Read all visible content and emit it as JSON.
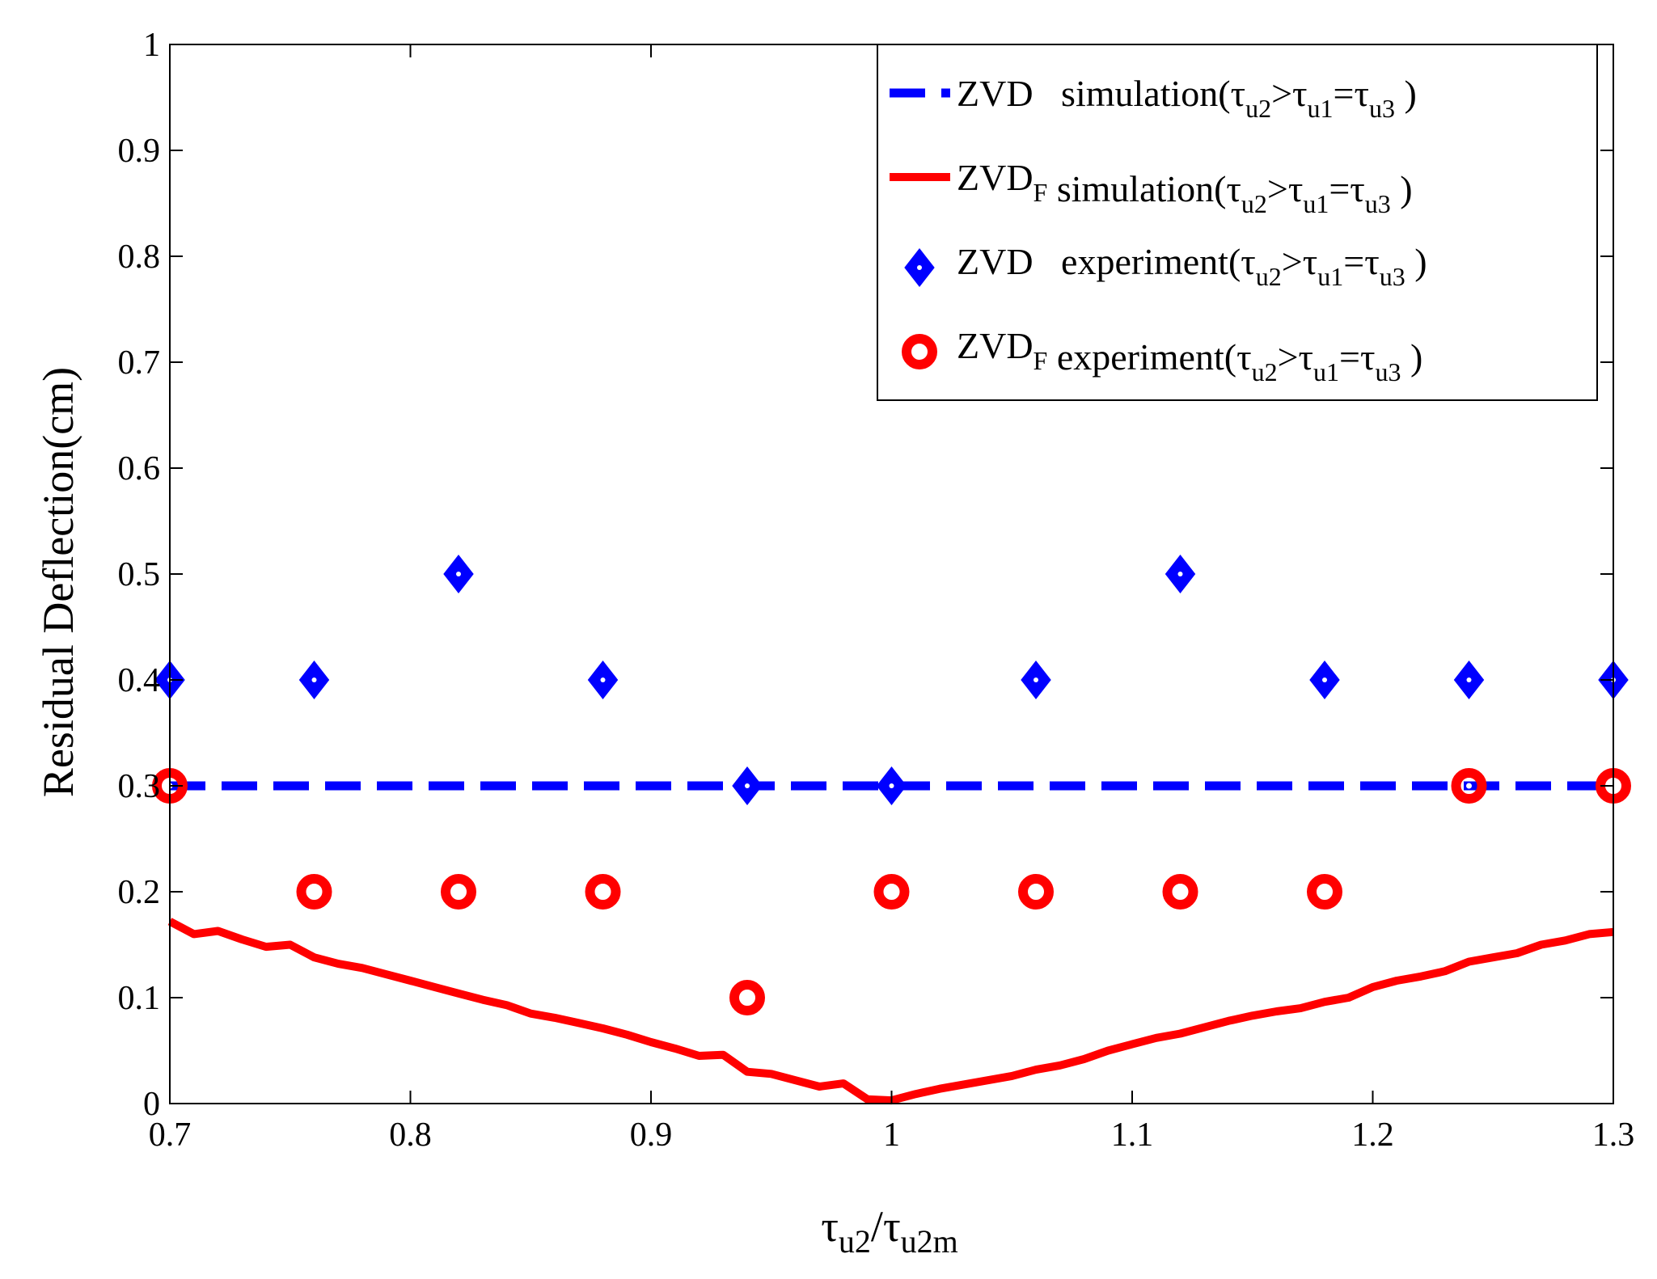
{
  "chart_data": {
    "type": "line",
    "title": "",
    "xlabel": {
      "main": "τ",
      "sub": "u2",
      "sep": "/",
      "main2": "τ",
      "sub2": "u2m"
    },
    "ylabel": "Residual Deflection(cm)",
    "xlim": [
      0.7,
      1.3
    ],
    "ylim": [
      0,
      1
    ],
    "xticks": [
      0.7,
      0.8,
      0.9,
      1.0,
      1.1,
      1.2,
      1.3
    ],
    "xtick_labels": [
      "0.7",
      "0.8",
      "0.9",
      "1",
      "1.1",
      "1.2",
      "1.3"
    ],
    "yticks": [
      0,
      0.1,
      0.2,
      0.3,
      0.4,
      0.5,
      0.6,
      0.7,
      0.8,
      0.9,
      1
    ],
    "ytick_labels": [
      "0",
      "0.1",
      "0.2",
      "0.3",
      "0.4",
      "0.5",
      "0.6",
      "0.7",
      "0.8",
      "0.9",
      "1"
    ],
    "grid": false,
    "legend_position": "top-right",
    "series": [
      {
        "name": "ZVD simulation",
        "kind": "line",
        "style": "dashed",
        "color": "#0000ff",
        "legend": {
          "name": "ZVD",
          "gap": true,
          "label": "simulation",
          "cond": [
            "τ",
            "u2",
            ">",
            "τ",
            "u1",
            "=",
            "τ",
            "u3"
          ]
        },
        "x": [
          0.7,
          1.3
        ],
        "y": [
          0.3,
          0.3
        ]
      },
      {
        "name": "ZVD_F simulation",
        "kind": "line",
        "style": "solid",
        "color": "#ff0000",
        "legend": {
          "name": "ZVD",
          "name_sub": "F",
          "label": "simulation",
          "cond": [
            "τ",
            "u2",
            ">",
            "τ",
            "u1",
            "=",
            "τ",
            "u3"
          ]
        },
        "x": [
          0.7,
          0.71,
          0.72,
          0.73,
          0.74,
          0.75,
          0.76,
          0.77,
          0.78,
          0.79,
          0.8,
          0.81,
          0.82,
          0.83,
          0.84,
          0.85,
          0.86,
          0.87,
          0.88,
          0.89,
          0.9,
          0.91,
          0.92,
          0.93,
          0.94,
          0.95,
          0.96,
          0.97,
          0.98,
          0.99,
          1.0,
          1.01,
          1.02,
          1.03,
          1.04,
          1.05,
          1.06,
          1.07,
          1.08,
          1.09,
          1.1,
          1.11,
          1.12,
          1.13,
          1.14,
          1.15,
          1.16,
          1.17,
          1.18,
          1.19,
          1.2,
          1.21,
          1.22,
          1.23,
          1.24,
          1.25,
          1.26,
          1.27,
          1.28,
          1.29,
          1.3
        ],
        "y": [
          0.172,
          0.16,
          0.163,
          0.155,
          0.148,
          0.15,
          0.138,
          0.132,
          0.128,
          0.122,
          0.116,
          0.11,
          0.104,
          0.098,
          0.093,
          0.085,
          0.081,
          0.076,
          0.071,
          0.065,
          0.058,
          0.052,
          0.045,
          0.046,
          0.03,
          0.028,
          0.022,
          0.016,
          0.019,
          0.004,
          0.003,
          0.009,
          0.014,
          0.018,
          0.022,
          0.026,
          0.032,
          0.036,
          0.042,
          0.05,
          0.056,
          0.062,
          0.066,
          0.072,
          0.078,
          0.083,
          0.087,
          0.09,
          0.096,
          0.1,
          0.11,
          0.116,
          0.12,
          0.125,
          0.134,
          0.138,
          0.142,
          0.15,
          0.154,
          0.16,
          0.162
        ]
      },
      {
        "name": "ZVD experiment",
        "kind": "scatter",
        "marker": "diamond",
        "color": "#0000ff",
        "legend": {
          "name": "ZVD",
          "gap": true,
          "label": "experiment",
          "cond": [
            "τ",
            "u2",
            ">",
            "τ",
            "u1",
            "=",
            "τ",
            "u3"
          ]
        },
        "x": [
          0.7,
          0.76,
          0.82,
          0.88,
          0.94,
          1.0,
          1.06,
          1.12,
          1.18,
          1.24,
          1.3
        ],
        "y": [
          0.4,
          0.4,
          0.5,
          0.4,
          0.3,
          0.3,
          0.4,
          0.5,
          0.4,
          0.4,
          0.4
        ]
      },
      {
        "name": "ZVD_F experiment",
        "kind": "scatter",
        "marker": "circle",
        "color": "#ff0000",
        "legend": {
          "name": "ZVD",
          "name_sub": "F",
          "label": "experiment",
          "cond": [
            "τ",
            "u2",
            ">",
            "τ",
            "u1",
            "=",
            "τ",
            "u3"
          ]
        },
        "x": [
          0.7,
          0.76,
          0.82,
          0.88,
          0.94,
          1.0,
          1.06,
          1.12,
          1.18,
          1.24,
          1.3
        ],
        "y": [
          0.3,
          0.2,
          0.2,
          0.2,
          0.1,
          0.2,
          0.2,
          0.2,
          0.2,
          0.3,
          0.3
        ]
      }
    ]
  }
}
